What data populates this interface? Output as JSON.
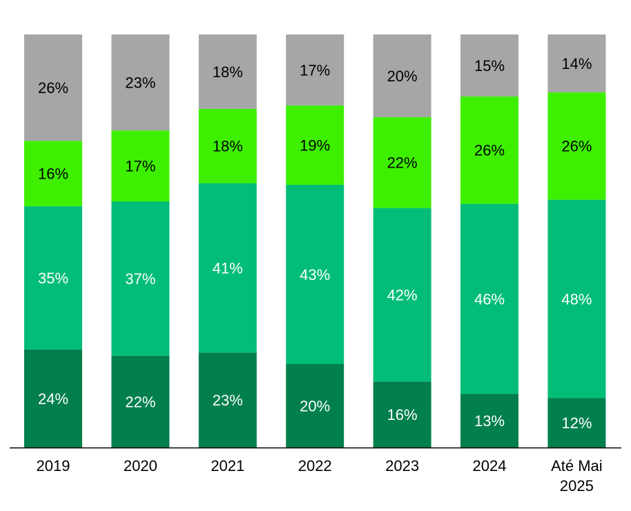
{
  "chart_data": {
    "type": "bar",
    "stacked": true,
    "normalized": true,
    "categories": [
      [
        "2019"
      ],
      [
        "2020"
      ],
      [
        "2021"
      ],
      [
        "2022"
      ],
      [
        "2023"
      ],
      [
        "2024"
      ],
      [
        "Até Mai",
        "2025"
      ]
    ],
    "series": [
      {
        "name": "",
        "color": "#017f4d",
        "label_color": "#ffffff",
        "values": [
          24,
          22,
          23,
          20,
          16,
          13,
          12
        ]
      },
      {
        "name": "",
        "color": "#02bd77",
        "label_color": "#ffffff",
        "values": [
          35,
          37,
          41,
          43,
          42,
          46,
          48
        ]
      },
      {
        "name": "",
        "color": "#3ef000",
        "label_color": "#000000",
        "values": [
          16,
          17,
          18,
          19,
          22,
          26,
          26
        ]
      },
      {
        "name": "",
        "color": "#a6a6a6",
        "label_color": "#000000",
        "values": [
          26,
          23,
          18,
          17,
          20,
          15,
          14
        ]
      }
    ],
    "value_suffix": "%",
    "title": "",
    "xlabel": "",
    "ylabel": "",
    "legend": "none",
    "grid": false
  }
}
